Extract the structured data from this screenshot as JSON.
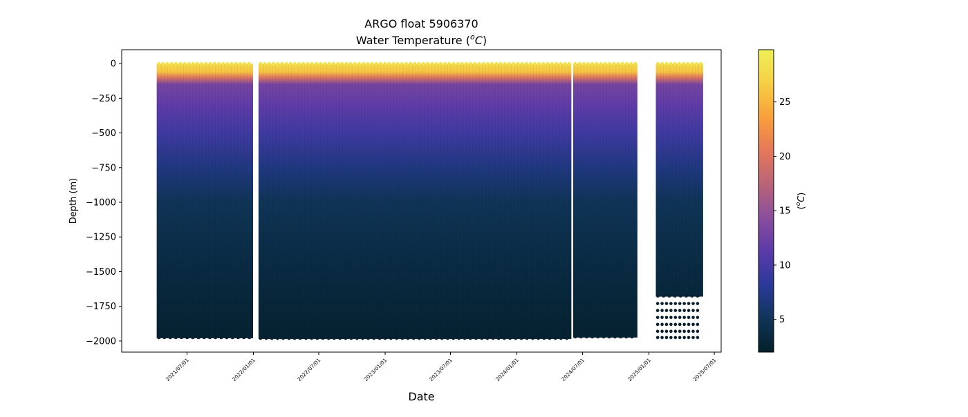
{
  "chart_data": {
    "type": "scatter",
    "title": "ARGO float 5906370",
    "subtitle_prefix": "Water Temperature (",
    "subtitle_unit_sup": "o",
    "subtitle_unit_c": "C",
    "subtitle_suffix": ")",
    "xlabel": "Date",
    "ylabel": "Depth (m)",
    "colorbar_label_prefix": "(",
    "colorbar_label_sup": "o",
    "colorbar_label_c": "C",
    "colorbar_label_suffix": ")",
    "colormap": "thermal",
    "colormap_stops": [
      "#04202c",
      "#0f3557",
      "#2a3a9a",
      "#5b3aa8",
      "#8a4e9c",
      "#b86478",
      "#e5785a",
      "#f9a03a",
      "#f6cf45",
      "#eef056"
    ],
    "color_range": [
      2,
      29.8
    ],
    "xlim": [
      "2021-01-01",
      "2025-07-20"
    ],
    "ylim": [
      -2080,
      100
    ],
    "x_ticks": [
      "2021/07/01",
      "2022/01/01",
      "2022/07/01",
      "2023/01/01",
      "2023/07/01",
      "2024/01/01",
      "2024/07/01",
      "2025/01/01",
      "2025/07/01"
    ],
    "y_ticks": [
      0,
      -250,
      -500,
      -750,
      -1000,
      -1250,
      -1500,
      -1750,
      -2000
    ],
    "y_tick_labels": [
      "0",
      "−250",
      "−500",
      "−750",
      "−1000",
      "−1250",
      "−1500",
      "−1750",
      "−2000"
    ],
    "colorbar_ticks": [
      5,
      10,
      15,
      20,
      25
    ],
    "segments": [
      {
        "start": "2021-04-08",
        "end": "2021-12-31",
        "max_depth": -1980
      },
      {
        "start": "2022-01-15",
        "end": "2024-05-31",
        "max_depth": -1985
      },
      {
        "start": "2024-06-05",
        "end": "2024-11-30",
        "max_depth": -1975
      },
      {
        "start": "2025-01-20",
        "end": "2025-05-31",
        "max_depth": -1680
      }
    ],
    "sparse_deep_samples": {
      "start": "2025-01-25",
      "end": "2025-05-28",
      "depths": [
        -1730,
        -1780,
        -1830,
        -1880,
        -1930,
        -1975
      ]
    },
    "temperature_profile": [
      {
        "depth": 0,
        "value": 28
      },
      {
        "depth": -60,
        "value": 26
      },
      {
        "depth": -100,
        "value": 20
      },
      {
        "depth": -150,
        "value": 13
      },
      {
        "depth": -300,
        "value": 11.5
      },
      {
        "depth": -500,
        "value": 9.5
      },
      {
        "depth": -750,
        "value": 7
      },
      {
        "depth": -1000,
        "value": 5
      },
      {
        "depth": -1500,
        "value": 3.5
      },
      {
        "depth": -2000,
        "value": 2.3
      }
    ],
    "grid": false,
    "legend": "none"
  }
}
